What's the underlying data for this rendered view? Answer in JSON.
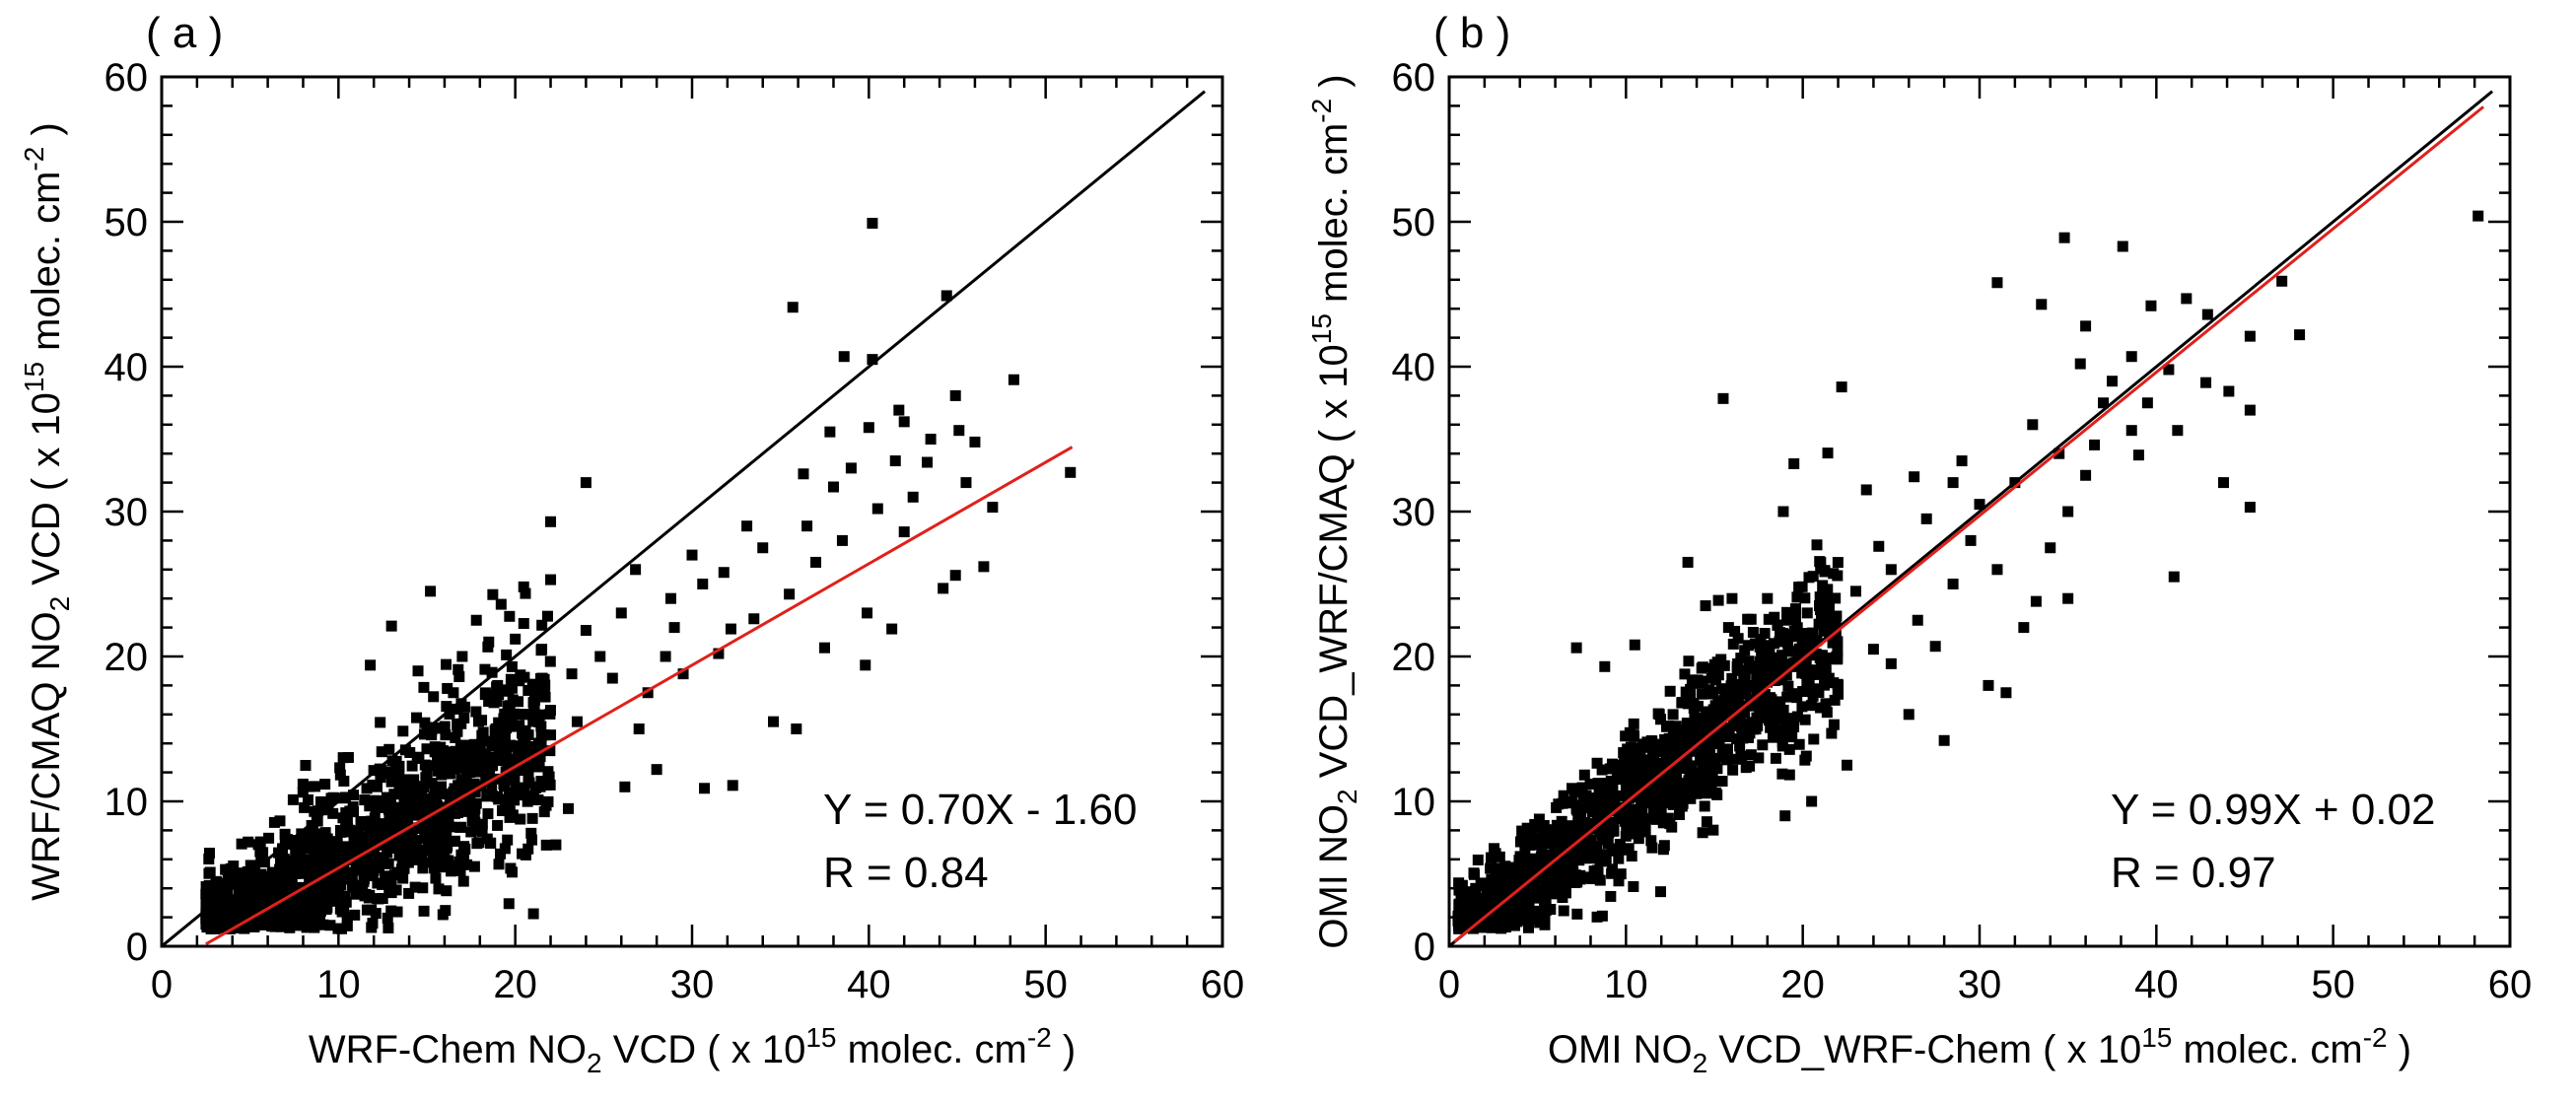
{
  "chart_data": [
    {
      "type": "scatter",
      "panel_label": "( a )",
      "xlabel": {
        "pre": "WRF-Chem NO",
        "sub": "2",
        "mid": " VCD ( x 10",
        "sup": "15",
        "post": " molec. cm",
        "sup2": "-2",
        "end": " )"
      },
      "ylabel": {
        "pre": "WRF/CMAQ NO",
        "sub": "2",
        "mid": " VCD ( x 10",
        "sup": "15",
        "post": " molec. cm",
        "sup2": "-2",
        "end": " )"
      },
      "xlim": [
        0,
        60
      ],
      "ylim": [
        0,
        60
      ],
      "xticks": [
        "0",
        "10",
        "20",
        "30",
        "40",
        "50",
        "60"
      ],
      "yticks": [
        "0",
        "10",
        "20",
        "30",
        "40",
        "50",
        "60"
      ],
      "one_to_one_line": {
        "x": [
          0,
          59
        ],
        "y": [
          0,
          59
        ],
        "color": "#000000"
      },
      "fit_line": {
        "slope": 0.7,
        "intercept": -1.6,
        "x": [
          2.5,
          51.5
        ],
        "color": "#e0201b"
      },
      "annotation": {
        "equation": "Y = 0.70X - 1.60",
        "r": "R = 0.84"
      },
      "points_core": {
        "x_range": [
          2.5,
          22
        ],
        "slope": 0.72,
        "intercept": -1.2,
        "spread": 3.5,
        "count": 1400
      },
      "points": [
        [
          40.2,
          49.9
        ],
        [
          35.7,
          44.1
        ],
        [
          44.4,
          44.9
        ],
        [
          38.6,
          40.7
        ],
        [
          40.2,
          40.5
        ],
        [
          48.2,
          39.1
        ],
        [
          44.9,
          38.0
        ],
        [
          41.7,
          37.0
        ],
        [
          45.1,
          35.6
        ],
        [
          43.3,
          33.4
        ],
        [
          47.0,
          30.3
        ],
        [
          51.4,
          32.7
        ],
        [
          46.5,
          26.2
        ],
        [
          44.9,
          25.6
        ],
        [
          44.2,
          24.7
        ],
        [
          39.9,
          23.0
        ],
        [
          41.3,
          21.9
        ],
        [
          37.5,
          20.6
        ],
        [
          39.8,
          19.4
        ],
        [
          42.0,
          28.6
        ],
        [
          38.0,
          31.7
        ],
        [
          36.3,
          32.6
        ],
        [
          33.1,
          29.0
        ],
        [
          30.6,
          25.0
        ],
        [
          32.2,
          21.9
        ],
        [
          28.5,
          20.0
        ],
        [
          26.0,
          23.0
        ],
        [
          24.0,
          21.8
        ],
        [
          22.0,
          25.3
        ],
        [
          19.2,
          23.6
        ],
        [
          15.2,
          24.5
        ],
        [
          17.8,
          22.5
        ],
        [
          24.0,
          32.0
        ],
        [
          22.0,
          29.3
        ],
        [
          13.0,
          22.1
        ],
        [
          11.8,
          19.4
        ],
        [
          14.5,
          19.0
        ],
        [
          34.6,
          15.5
        ],
        [
          35.9,
          15.0
        ],
        [
          32.3,
          11.1
        ],
        [
          30.7,
          10.9
        ],
        [
          28.0,
          12.2
        ],
        [
          26.2,
          11.0
        ],
        [
          23.0,
          9.5
        ],
        [
          22.3,
          7.0
        ],
        [
          20.6,
          6.3
        ],
        [
          27.5,
          17.5
        ],
        [
          29.5,
          18.8
        ],
        [
          31.5,
          20.2
        ],
        [
          33.5,
          22.6
        ],
        [
          35.5,
          24.3
        ],
        [
          37.0,
          26.5
        ],
        [
          34.0,
          27.5
        ],
        [
          36.5,
          29.0
        ],
        [
          38.5,
          28.0
        ],
        [
          40.5,
          30.2
        ],
        [
          42.5,
          31.0
        ],
        [
          43.5,
          35.0
        ],
        [
          41.5,
          33.5
        ],
        [
          39.0,
          33.0
        ],
        [
          37.8,
          35.5
        ],
        [
          40.0,
          35.8
        ],
        [
          42.0,
          36.2
        ],
        [
          46.0,
          34.8
        ],
        [
          45.5,
          32.0
        ],
        [
          26.8,
          26.0
        ],
        [
          28.8,
          24.0
        ],
        [
          30.0,
          27.0
        ],
        [
          31.8,
          25.8
        ],
        [
          29.0,
          22.0
        ],
        [
          25.5,
          18.5
        ],
        [
          27.0,
          15.0
        ],
        [
          23.5,
          15.5
        ],
        [
          21.0,
          16.0
        ],
        [
          19.0,
          18.0
        ],
        [
          17.0,
          20.0
        ],
        [
          16.5,
          17.5
        ],
        [
          21.5,
          20.5
        ],
        [
          23.2,
          18.8
        ],
        [
          24.8,
          20.0
        ],
        [
          20.0,
          21.2
        ],
        [
          18.5,
          21.0
        ]
      ]
    },
    {
      "type": "scatter",
      "panel_label": "( b )",
      "xlabel": {
        "pre": "OMI NO",
        "sub": "2",
        "mid": " VCD_WRF-Chem ( x 10",
        "sup": "15",
        "post": " molec. cm",
        "sup2": "-2",
        "end": " )"
      },
      "ylabel": {
        "pre": "OMI NO",
        "sub": "2",
        "mid": " VCD_WRF/CMAQ ( x 10",
        "sup": "15",
        "post": " molec. cm",
        "sup2": "-2",
        "end": " )"
      },
      "xlim": [
        0,
        60
      ],
      "ylim": [
        0,
        60
      ],
      "xticks": [
        "0",
        "10",
        "20",
        "30",
        "40",
        "50",
        "60"
      ],
      "yticks": [
        "0",
        "10",
        "20",
        "30",
        "40",
        "50",
        "60"
      ],
      "one_to_one_line": {
        "x": [
          0,
          59
        ],
        "y": [
          0,
          59
        ],
        "color": "#000000"
      },
      "fit_line": {
        "slope": 0.99,
        "intercept": 0.02,
        "x": [
          0.3,
          58.5
        ],
        "color": "#e0201b"
      },
      "annotation": {
        "equation": "Y = 0.99X + 0.02",
        "r": "R = 0.97"
      },
      "points_core": {
        "x_range": [
          0.5,
          22
        ],
        "slope": 0.99,
        "intercept": 0.02,
        "spread": 2.8,
        "count": 1400
      },
      "points": [
        [
          58.2,
          50.4
        ],
        [
          34.8,
          48.9
        ],
        [
          38.1,
          48.3
        ],
        [
          31.0,
          45.8
        ],
        [
          33.5,
          44.3
        ],
        [
          39.7,
          44.2
        ],
        [
          41.7,
          44.7
        ],
        [
          47.1,
          45.9
        ],
        [
          45.3,
          42.1
        ],
        [
          48.1,
          42.2
        ],
        [
          42.9,
          43.6
        ],
        [
          36.0,
          42.8
        ],
        [
          38.6,
          40.7
        ],
        [
          35.7,
          40.2
        ],
        [
          40.7,
          39.8
        ],
        [
          42.8,
          38.9
        ],
        [
          44.1,
          38.3
        ],
        [
          45.3,
          37.0
        ],
        [
          41.2,
          35.6
        ],
        [
          38.6,
          35.6
        ],
        [
          39.0,
          33.9
        ],
        [
          36.5,
          34.6
        ],
        [
          45.3,
          30.3
        ],
        [
          41.0,
          25.5
        ],
        [
          43.8,
          32.0
        ],
        [
          34.0,
          27.5
        ],
        [
          35.0,
          24.0
        ],
        [
          29.0,
          33.5
        ],
        [
          28.5,
          32.0
        ],
        [
          26.3,
          32.4
        ],
        [
          23.6,
          31.5
        ],
        [
          19.5,
          33.3
        ],
        [
          15.5,
          37.8
        ],
        [
          22.2,
          38.6
        ],
        [
          18.9,
          30.0
        ],
        [
          20.8,
          27.7
        ],
        [
          24.3,
          27.6
        ],
        [
          16.0,
          24.0
        ],
        [
          15.8,
          22.0
        ],
        [
          13.5,
          26.5
        ],
        [
          14.5,
          23.5
        ],
        [
          10.5,
          20.8
        ],
        [
          8.8,
          19.3
        ],
        [
          7.2,
          20.6
        ],
        [
          12.5,
          17.6
        ],
        [
          25.0,
          19.5
        ],
        [
          27.5,
          20.7
        ],
        [
          30.5,
          18.0
        ],
        [
          32.5,
          22.0
        ],
        [
          31.5,
          17.5
        ],
        [
          28.0,
          14.2
        ],
        [
          26.0,
          16.0
        ],
        [
          22.5,
          12.5
        ],
        [
          20.5,
          10.0
        ],
        [
          19.0,
          9.0
        ],
        [
          17.5,
          13.0
        ],
        [
          33.2,
          23.8
        ],
        [
          36.0,
          32.5
        ],
        [
          37.0,
          37.5
        ],
        [
          27.0,
          29.5
        ],
        [
          25.0,
          26.0
        ],
        [
          30.0,
          30.5
        ],
        [
          32.0,
          32.0
        ],
        [
          34.5,
          34.0
        ],
        [
          28.5,
          25.0
        ],
        [
          26.5,
          22.5
        ],
        [
          29.5,
          28.0
        ],
        [
          31.0,
          26.0
        ],
        [
          35.0,
          30.0
        ],
        [
          33.0,
          36.0
        ],
        [
          37.5,
          39.0
        ],
        [
          39.5,
          37.5
        ],
        [
          23.0,
          24.5
        ],
        [
          21.5,
          22.0
        ],
        [
          24.0,
          20.5
        ],
        [
          18.0,
          24.0
        ],
        [
          17.0,
          18.0
        ],
        [
          22.0,
          18.0
        ]
      ]
    }
  ]
}
